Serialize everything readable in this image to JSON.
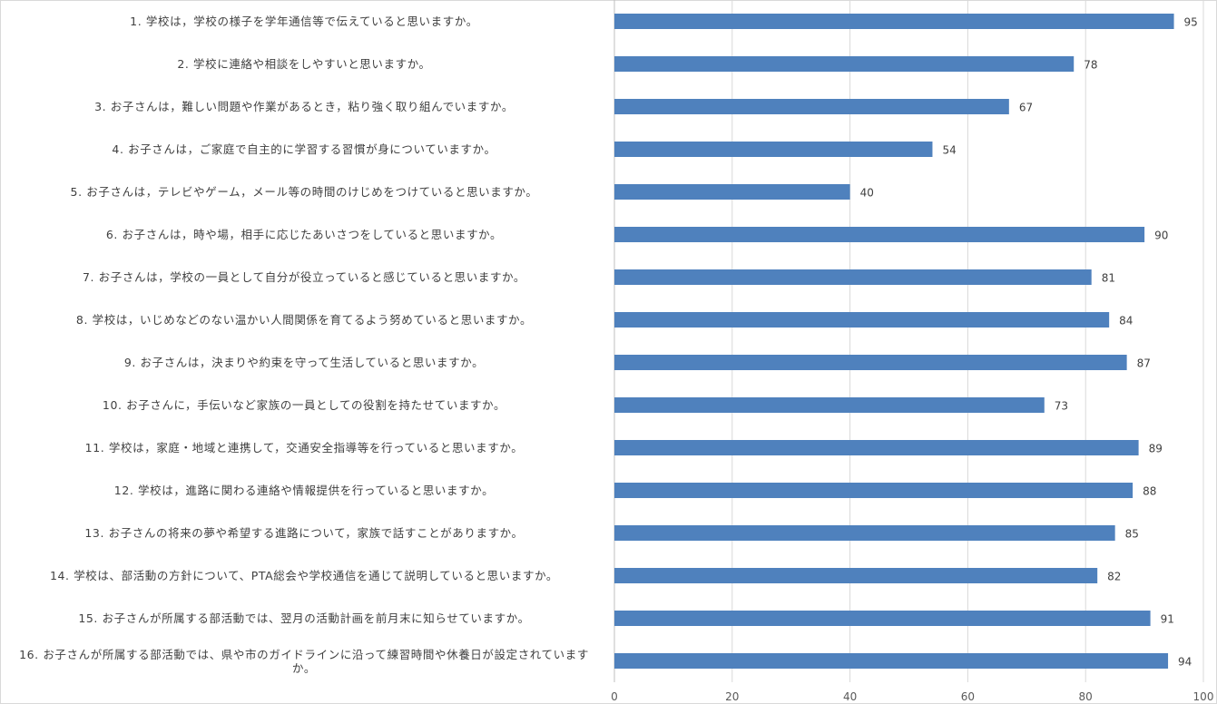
{
  "chart_data": {
    "type": "bar",
    "orientation": "horizontal",
    "categories": [
      "1. 学校は，学校の様子を学年通信等で伝えていると思いますか。",
      "2. 学校に連絡や相談をしやすいと思いますか。",
      "3. お子さんは，難しい問題や作業があるとき，粘り強く取り組んでいますか。",
      "4. お子さんは，ご家庭で自主的に学習する習慣が身についていますか。",
      "5. お子さんは，テレビやゲーム，メール等の時間のけじめをつけていると思いますか。",
      "6. お子さんは，時や場，相手に応じたあいさつをしていると思いますか。",
      "7. お子さんは，学校の一員として自分が役立っていると感じていると思いますか。",
      "8. 学校は，いじめなどのない温かい人間関係を育てるよう努めていると思いますか。",
      "9. お子さんは，決まりや約束を守って生活していると思いますか。",
      "10. お子さんに，手伝いなど家族の一員としての役割を持たせていますか。",
      "11. 学校は，家庭・地域と連携して，交通安全指導等を行っていると思いますか。",
      "12. 学校は，進路に関わる連絡や情報提供を行っていると思いますか。",
      "13. お子さんの将来の夢や希望する進路について，家族で話すことがありますか。",
      "14. 学校は、部活動の方針について、PTA総会や学校通信を通じて説明していると思いますか。",
      "15. お子さんが所属する部活動では、翌月の活動計画を前月末に知らせていますか。",
      "16. お子さんが所属する部活動では、県や市のガイドラインに沿って練習時間や休養日が設定されていますか。"
    ],
    "values": [
      95,
      78,
      67,
      54,
      40,
      90,
      81,
      84,
      87,
      73,
      89,
      88,
      85,
      82,
      91,
      94
    ],
    "xlim": [
      0,
      100
    ],
    "xticks": [
      "0",
      "20",
      "40",
      "60",
      "80",
      "100"
    ],
    "grid": "vertical",
    "bar_color": "#4f81bd"
  }
}
